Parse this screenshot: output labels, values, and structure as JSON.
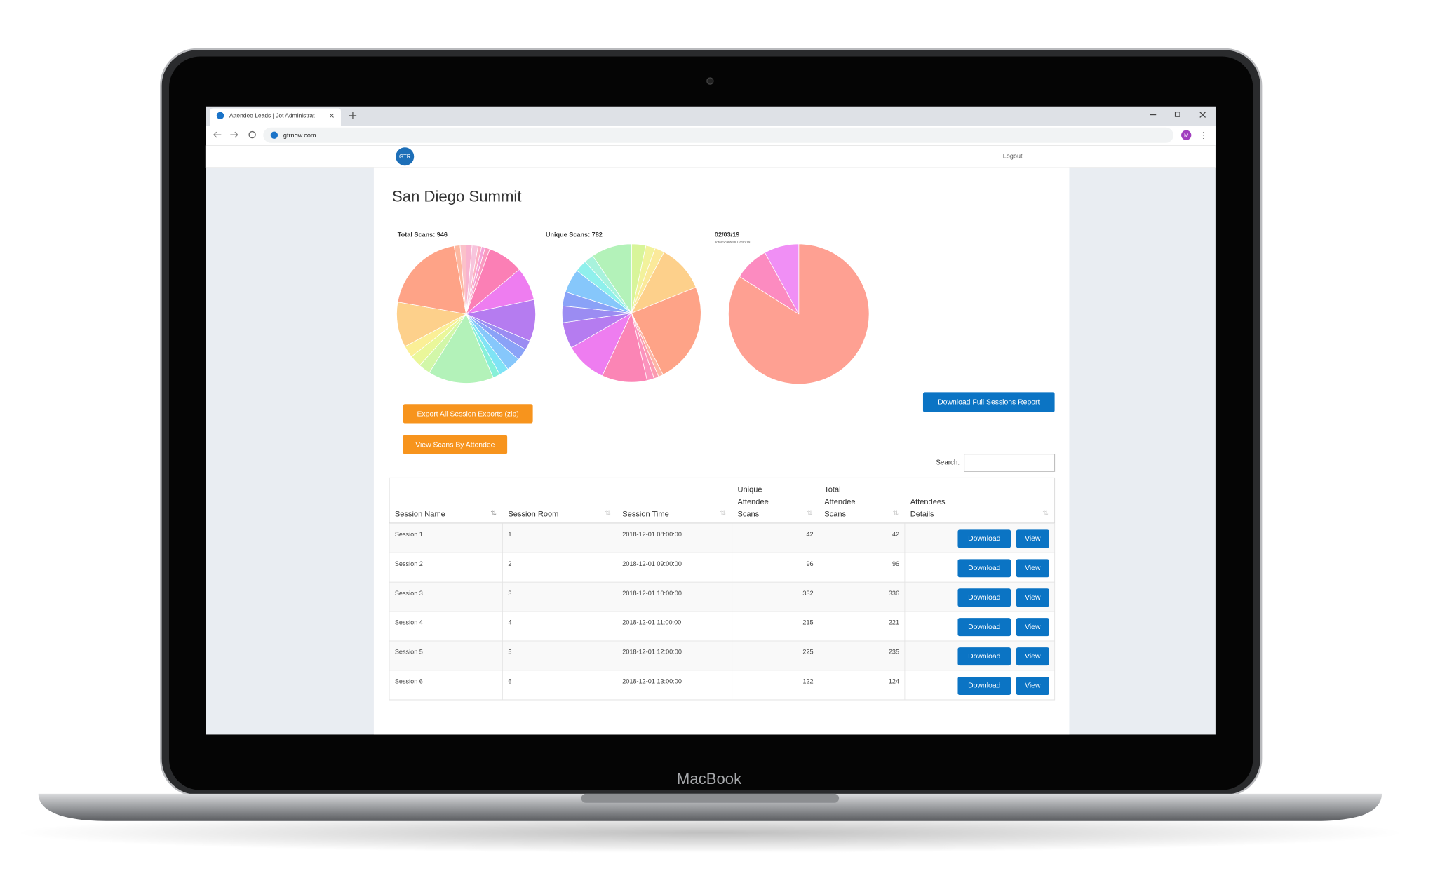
{
  "browser": {
    "tab_title": "Attendee Leads | Jot Administrat",
    "url": "gtrnow.com",
    "avatar": "M"
  },
  "nav": {
    "logo": "GTR",
    "logout": "Logout"
  },
  "page": {
    "title": "San Diego Summit"
  },
  "chart_data": [
    {
      "type": "pie",
      "title": "Total Scans: 946",
      "values": [
        5,
        5,
        3,
        3,
        4,
        30,
        28,
        35,
        8,
        10,
        12,
        8,
        6,
        55,
        10,
        10,
        10,
        38,
        70,
        5,
        5
      ],
      "colors": [
        "#f9b3cf",
        "#f7c4dc",
        "#fdb0c4",
        "#f5a3d8",
        "#fa9ac0",
        "#fb7fb5",
        "#ee7df0",
        "#b57cf0",
        "#9b8cf2",
        "#8aa2f7",
        "#86c7fb",
        "#7fe3f5",
        "#87f0d8",
        "#b3f2b9",
        "#d2f7a8",
        "#eaf79a",
        "#fbef96",
        "#fdd08b",
        "#fea387",
        "#fdb8a0",
        "#fbc1c9"
      ]
    },
    {
      "type": "pie",
      "title": "Unique Scans: 782",
      "values": [
        12,
        8,
        8,
        40,
        85,
        4,
        4,
        6,
        38,
        35,
        22,
        14,
        12,
        20,
        10,
        8,
        34
      ],
      "colors": [
        "#d8f59a",
        "#f2f29c",
        "#fbe99a",
        "#fdd08b",
        "#fea387",
        "#fdb5a5",
        "#fb9ab0",
        "#fb93bd",
        "#fb85b5",
        "#ee7df0",
        "#b57cf0",
        "#9b8cf2",
        "#8aa2f7",
        "#86c7fb",
        "#8ff0ec",
        "#a8f2dc",
        "#b3f2b9"
      ]
    },
    {
      "type": "pie",
      "title": "02/03/19",
      "subtitle": "Total Scans for 02/03/19",
      "values": [
        84,
        8,
        8
      ],
      "colors": [
        "#fea092",
        "#fc8bc0",
        "#f08ff5"
      ]
    }
  ],
  "buttons": {
    "export": "Export All Session Exports (zip)",
    "view_scans": "View Scans By Attendee",
    "download_report": "Download Full Sessions Report"
  },
  "search_label": "Search:",
  "table": {
    "columns": [
      [
        "Session Name"
      ],
      [
        "Session Room"
      ],
      [
        "Session Time"
      ],
      [
        "Unique",
        "Attendee",
        "Scans"
      ],
      [
        "Total",
        "Attendee",
        "Scans"
      ],
      [
        "Attendees",
        "Details"
      ]
    ],
    "rows": [
      [
        "Session 1",
        "1",
        "2018-12-01 08:00:00",
        42,
        42
      ],
      [
        "Session 2",
        "2",
        "2018-12-01 09:00:00",
        96,
        96
      ],
      [
        "Session 3",
        "3",
        "2018-12-01 10:00:00",
        332,
        336
      ],
      [
        "Session 4",
        "4",
        "2018-12-01 11:00:00",
        215,
        221
      ],
      [
        "Session 5",
        "5",
        "2018-12-01 12:00:00",
        225,
        235
      ],
      [
        "Session 6",
        "6",
        "2018-12-01 13:00:00",
        122,
        124
      ]
    ],
    "actions": [
      "Download",
      "View"
    ]
  },
  "device": "MacBook"
}
